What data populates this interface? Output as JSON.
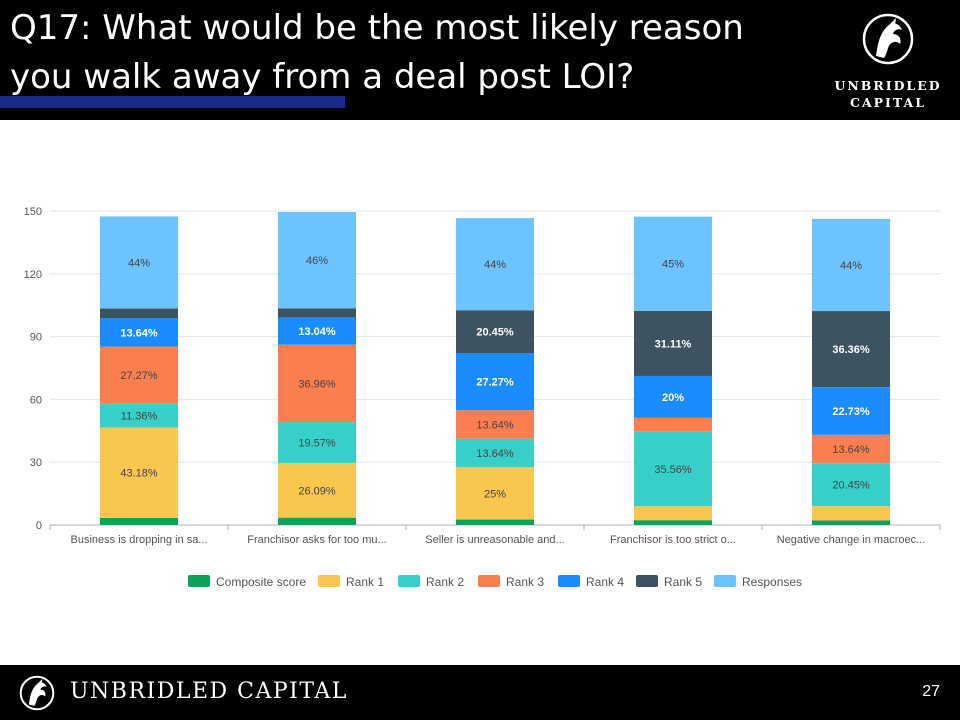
{
  "header": {
    "title": "Q17: What would be the most likely reason you walk away from a deal post LOI?",
    "logo_line1": "UNBRIDLED",
    "logo_line2": "CAPITAL"
  },
  "footer": {
    "company": "UNBRIDLED CAPITAL",
    "page_number": "27"
  },
  "colors": {
    "Composite score": "#0aa35a",
    "Rank 1": "#f9c74f",
    "Rank 2": "#36cfc9",
    "Rank 3": "#fa7e4f",
    "Rank 4": "#1a8cff",
    "Rank 5": "#3d5361",
    "Responses": "#6cc3ff"
  },
  "chart_data": {
    "type": "bar",
    "stacked": true,
    "ylim": [
      0,
      150
    ],
    "yticks": [
      0,
      30,
      60,
      90,
      120,
      150
    ],
    "grid": true,
    "legend_position": "bottom",
    "categories": [
      "Business is dropping in sa...",
      "Franchisor asks for too mu...",
      "Seller is unreasonable and...",
      "Franchisor is too strict o...",
      "Negative change in macroec..."
    ],
    "series": [
      {
        "name": "Composite score",
        "values": [
          3.4,
          3.5,
          2.6,
          2.3,
          2.2
        ],
        "labels": [
          "",
          "",
          "",
          "",
          ""
        ]
      },
      {
        "name": "Rank 1",
        "values": [
          43.18,
          26.09,
          25,
          6.67,
          6.82
        ],
        "labels": [
          "43.18%",
          "26.09%",
          "25%",
          "",
          ""
        ]
      },
      {
        "name": "Rank 2",
        "values": [
          11.36,
          19.57,
          13.64,
          35.56,
          20.45
        ],
        "labels": [
          "11.36%",
          "19.57%",
          "13.64%",
          "35.56%",
          "20.45%"
        ]
      },
      {
        "name": "Rank 3",
        "values": [
          27.27,
          36.96,
          13.64,
          6.67,
          13.64
        ],
        "labels": [
          "27.27%",
          "36.96%",
          "13.64%",
          "",
          "13.64%"
        ]
      },
      {
        "name": "Rank 4",
        "values": [
          13.64,
          13.04,
          27.27,
          20,
          22.73
        ],
        "labels": [
          "13.64%",
          "13.04%",
          "27.27%",
          "20%",
          "22.73%"
        ]
      },
      {
        "name": "Rank 5",
        "values": [
          4.55,
          4.35,
          20.45,
          31.11,
          36.36
        ],
        "labels": [
          "",
          "",
          "20.45%",
          "31.11%",
          "36.36%"
        ]
      },
      {
        "name": "Responses",
        "values": [
          44,
          46,
          44,
          45,
          44
        ],
        "labels": [
          "44%",
          "46%",
          "44%",
          "45%",
          "44%"
        ]
      }
    ]
  }
}
